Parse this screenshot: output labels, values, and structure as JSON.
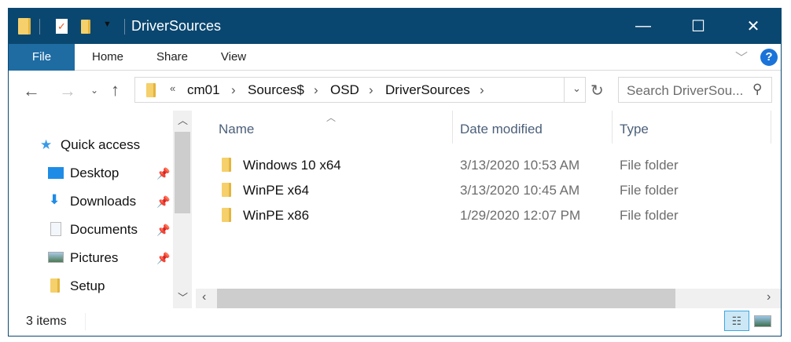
{
  "window": {
    "title": "DriverSources",
    "controls": {
      "minimize": "—",
      "maximize": "☐",
      "close": "✕"
    }
  },
  "ribbon": {
    "tabs": [
      "File",
      "Home",
      "Share",
      "View"
    ]
  },
  "address": {
    "overflow": "«",
    "crumbs": [
      "cm01",
      "Sources$",
      "OSD",
      "DriverSources"
    ]
  },
  "search": {
    "placeholder": "Search DriverSou..."
  },
  "nav": {
    "quick_access": "Quick access",
    "items": [
      {
        "label": "Desktop",
        "pinned": true
      },
      {
        "label": "Downloads",
        "pinned": true
      },
      {
        "label": "Documents",
        "pinned": true
      },
      {
        "label": "Pictures",
        "pinned": true
      },
      {
        "label": "Setup",
        "pinned": false
      }
    ]
  },
  "columns": [
    "Name",
    "Date modified",
    "Type"
  ],
  "files": [
    {
      "name": "Windows 10 x64",
      "date": "3/13/2020 10:53 AM",
      "type": "File folder"
    },
    {
      "name": "WinPE x64",
      "date": "3/13/2020 10:45 AM",
      "type": "File folder"
    },
    {
      "name": "WinPE x86",
      "date": "1/29/2020 12:07 PM",
      "type": "File folder"
    }
  ],
  "status": {
    "count": "3 items"
  },
  "colors": {
    "titlebar": "#0a4770",
    "file_tab": "#1f6ca3",
    "help": "#1a73d9"
  }
}
